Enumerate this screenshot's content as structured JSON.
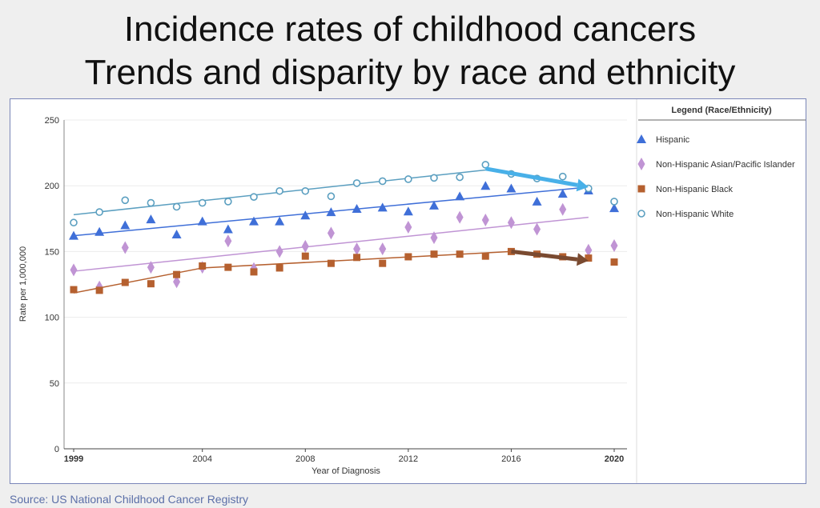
{
  "slide": {
    "title_line1": "Incidence rates of childhood cancers",
    "title_line2": "Trends and disparity by race and ethnicity",
    "source": "Source: US National Childhood Cancer Registry"
  },
  "chart_data": {
    "type": "scatter",
    "xlabel": "Year of Diagnosis",
    "ylabel": "Rate per 1,000,000",
    "xlim": [
      1999,
      2020
    ],
    "ylim": [
      0,
      250
    ],
    "x_ticks": [
      "1999",
      "2004",
      "2008",
      "2012",
      "2016",
      "2020"
    ],
    "y_ticks": [
      "0",
      "50",
      "100",
      "150",
      "200",
      "250"
    ],
    "grid": "horizontal",
    "legend": {
      "title": "Legend (Race/Ethnicity)",
      "placement": "right"
    },
    "x": [
      1999,
      2000,
      2001,
      2002,
      2003,
      2004,
      2005,
      2006,
      2007,
      2008,
      2009,
      2010,
      2011,
      2012,
      2013,
      2014,
      2015,
      2016,
      2017,
      2018,
      2019,
      2020
    ],
    "series": [
      {
        "name": "Hispanic",
        "marker": "triangle",
        "color": "#3f6fd8",
        "values": [
          162,
          165,
          170,
          174.5,
          163,
          173,
          167,
          173,
          173,
          177.5,
          180,
          182.5,
          183.5,
          180.5,
          185,
          192,
          200,
          198,
          188,
          194,
          196.5,
          183
        ],
        "trend": [
          [
            1999,
            162
          ],
          [
            2019,
            199
          ]
        ]
      },
      {
        "name": "Non-Hispanic Asian/Pacific Islander",
        "marker": "diamond",
        "color": "#c094d4",
        "values": [
          136,
          123,
          153,
          138,
          127,
          138,
          158,
          137,
          150,
          154,
          164,
          152,
          152,
          168.5,
          160.5,
          176,
          174,
          172,
          167,
          182,
          151,
          154.5
        ],
        "trend": [
          [
            1999,
            135
          ],
          [
            2019,
            176
          ]
        ]
      },
      {
        "name": "Non-Hispanic Black",
        "marker": "square",
        "color": "#b5602f",
        "values": [
          121,
          120.5,
          126.5,
          125.5,
          132.5,
          139,
          138,
          134.5,
          137.5,
          146.5,
          141,
          145.5,
          141,
          146,
          148,
          148,
          146.5,
          150,
          148,
          146,
          145,
          142
        ],
        "trend": [
          [
            1999,
            118.5
          ],
          [
            2004,
            137.5
          ],
          [
            2016,
            150
          ]
        ]
      },
      {
        "name": "Non-Hispanic White",
        "marker": "circle",
        "color": "#5b9fc0",
        "values": [
          172,
          180,
          189,
          187,
          184,
          187,
          188,
          191.5,
          196,
          196,
          192,
          202,
          203.5,
          205,
          206,
          206.5,
          216,
          209,
          205.5,
          207,
          198,
          188
        ],
        "trend": [
          [
            1999,
            178
          ],
          [
            2015,
            212
          ]
        ]
      }
    ],
    "annotations": [
      {
        "type": "arrow",
        "color": "#48b0e8",
        "from": [
          2015,
          213
        ],
        "to": [
          2019,
          199
        ]
      },
      {
        "type": "arrow",
        "color": "#7a4a30",
        "from": [
          2016,
          150
        ],
        "to": [
          2019,
          143
        ]
      }
    ]
  }
}
